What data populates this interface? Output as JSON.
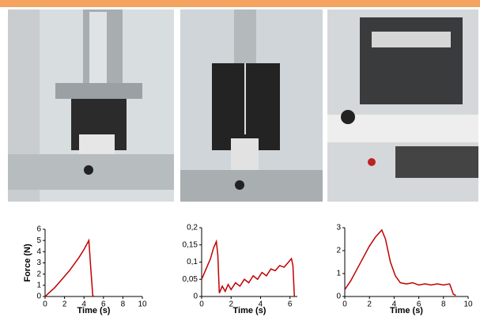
{
  "chart_data": [
    {
      "type": "line",
      "x_label": "Time (s)",
      "y_label": "Force (N)",
      "xlim": [
        0,
        10
      ],
      "xticks": [
        0,
        2,
        4,
        6,
        8,
        10
      ],
      "ylim": [
        0,
        6
      ],
      "yticks": [
        0,
        1,
        2,
        3,
        4,
        5,
        6
      ],
      "series": [
        {
          "color": "#c00000",
          "x": [
            0,
            0.5,
            1,
            1.5,
            2,
            2.5,
            3,
            3.5,
            4,
            4.5,
            4.7,
            4.9,
            5
          ],
          "values": [
            0,
            0.4,
            0.8,
            1.3,
            1.8,
            2.3,
            2.9,
            3.5,
            4.2,
            5.0,
            2.5,
            0.1,
            0
          ]
        }
      ]
    },
    {
      "type": "line",
      "x_label": "Time (s)",
      "xlim": [
        0,
        6.5
      ],
      "xticks": [
        0,
        2,
        4,
        6
      ],
      "ylim": [
        0,
        0.2
      ],
      "yticks": [
        0,
        {
          "value": 0.05,
          "label": "0,05"
        },
        {
          "value": 0.1,
          "label": "0,1"
        },
        {
          "value": 0.15,
          "label": "0,15"
        },
        {
          "value": 0.2,
          "label": "0,2"
        }
      ],
      "series": [
        {
          "color": "#c00000",
          "x": [
            0,
            0.2,
            0.4,
            0.6,
            0.8,
            1.0,
            1.1,
            1.2,
            1.4,
            1.6,
            1.8,
            2.0,
            2.3,
            2.6,
            2.9,
            3.2,
            3.5,
            3.8,
            4.1,
            4.4,
            4.7,
            5.0,
            5.3,
            5.6,
            5.9,
            6.1,
            6.2,
            6.3
          ],
          "values": [
            0.05,
            0.07,
            0.09,
            0.11,
            0.14,
            0.16,
            0.12,
            0.01,
            0.03,
            0.015,
            0.035,
            0.02,
            0.04,
            0.03,
            0.05,
            0.04,
            0.06,
            0.05,
            0.07,
            0.06,
            0.08,
            0.075,
            0.09,
            0.085,
            0.1,
            0.11,
            0.09,
            0
          ]
        }
      ]
    },
    {
      "type": "line",
      "x_label": "Time (s)",
      "xlim": [
        0,
        10
      ],
      "xticks": [
        0,
        2,
        4,
        6,
        8,
        10
      ],
      "ylim": [
        0,
        3
      ],
      "yticks": [
        0,
        1,
        2,
        3
      ],
      "series": [
        {
          "color": "#c00000",
          "x": [
            0,
            0.5,
            1,
            1.5,
            2,
            2.5,
            3,
            3.3,
            3.7,
            4.1,
            4.5,
            5,
            5.5,
            6,
            6.5,
            7,
            7.5,
            8,
            8.5,
            8.8,
            9
          ],
          "values": [
            0.3,
            0.7,
            1.2,
            1.7,
            2.2,
            2.6,
            2.9,
            2.5,
            1.5,
            0.9,
            0.6,
            0.55,
            0.6,
            0.5,
            0.55,
            0.5,
            0.55,
            0.5,
            0.55,
            0.1,
            0.05
          ]
        }
      ]
    }
  ]
}
